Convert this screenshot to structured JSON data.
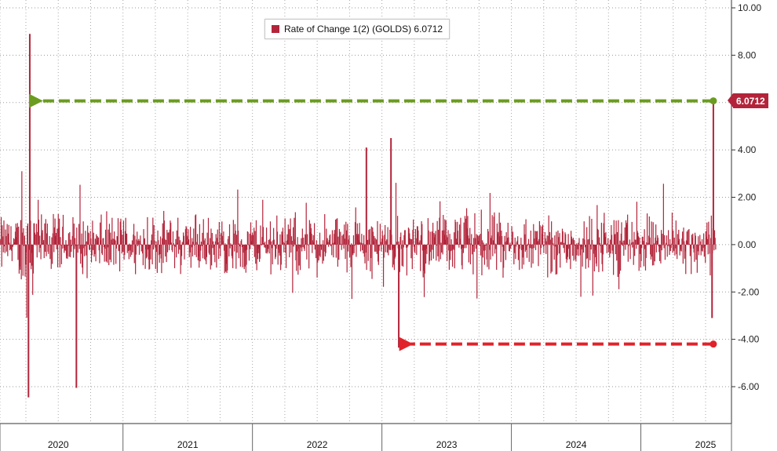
{
  "chart_data": {
    "type": "bar",
    "legend": {
      "label": "Rate of Change 1(2) (GOLDS) 6.0712",
      "color": "#b3243a"
    },
    "last_value_label": "6.0712",
    "series_color": "#b3243a",
    "y_axis": {
      "ylim": [
        -7,
        10.2
      ],
      "ticks": [
        10,
        8,
        6,
        4,
        2,
        0,
        -2,
        -4,
        -6
      ],
      "tick_labels": [
        "10.00",
        "8.00",
        "6.00",
        "4.00",
        "2.00",
        "0.00",
        "-2.00",
        "-4.00",
        "-6.00"
      ],
      "position": "right",
      "grid": true
    },
    "x_axis": {
      "xlim": [
        2019.55,
        2025.2
      ],
      "year_labels": [
        "2020",
        "2021",
        "2022",
        "2023",
        "2024",
        "2025"
      ],
      "year_label_positions": [
        2020.0,
        2021.0,
        2022.0,
        2023.0,
        2024.0,
        2025.0
      ],
      "boundaries": [
        2019.55,
        2020.5,
        2021.5,
        2022.5,
        2023.5,
        2024.5,
        2025.2
      ]
    },
    "notable_points": [
      {
        "x": 2019.78,
        "y": 8.9
      },
      {
        "x": 2019.77,
        "y": -6.45
      },
      {
        "x": 2020.14,
        "y": -6.05
      },
      {
        "x": 2022.38,
        "y": 4.1
      },
      {
        "x": 2022.57,
        "y": 4.5
      },
      {
        "x": 2022.63,
        "y": -4.35
      },
      {
        "x": 2025.06,
        "y": 6.0712
      },
      {
        "x": 2025.05,
        "y": -3.1
      }
    ],
    "annotations": [
      {
        "type": "arrow",
        "color": "#6b9c1f",
        "from_x": 2025.06,
        "to_x": 2019.8,
        "y": 6.0712
      },
      {
        "type": "arrow",
        "color": "#e0232b",
        "from_x": 2025.06,
        "to_x": 2022.66,
        "y": -4.2
      }
    ]
  }
}
